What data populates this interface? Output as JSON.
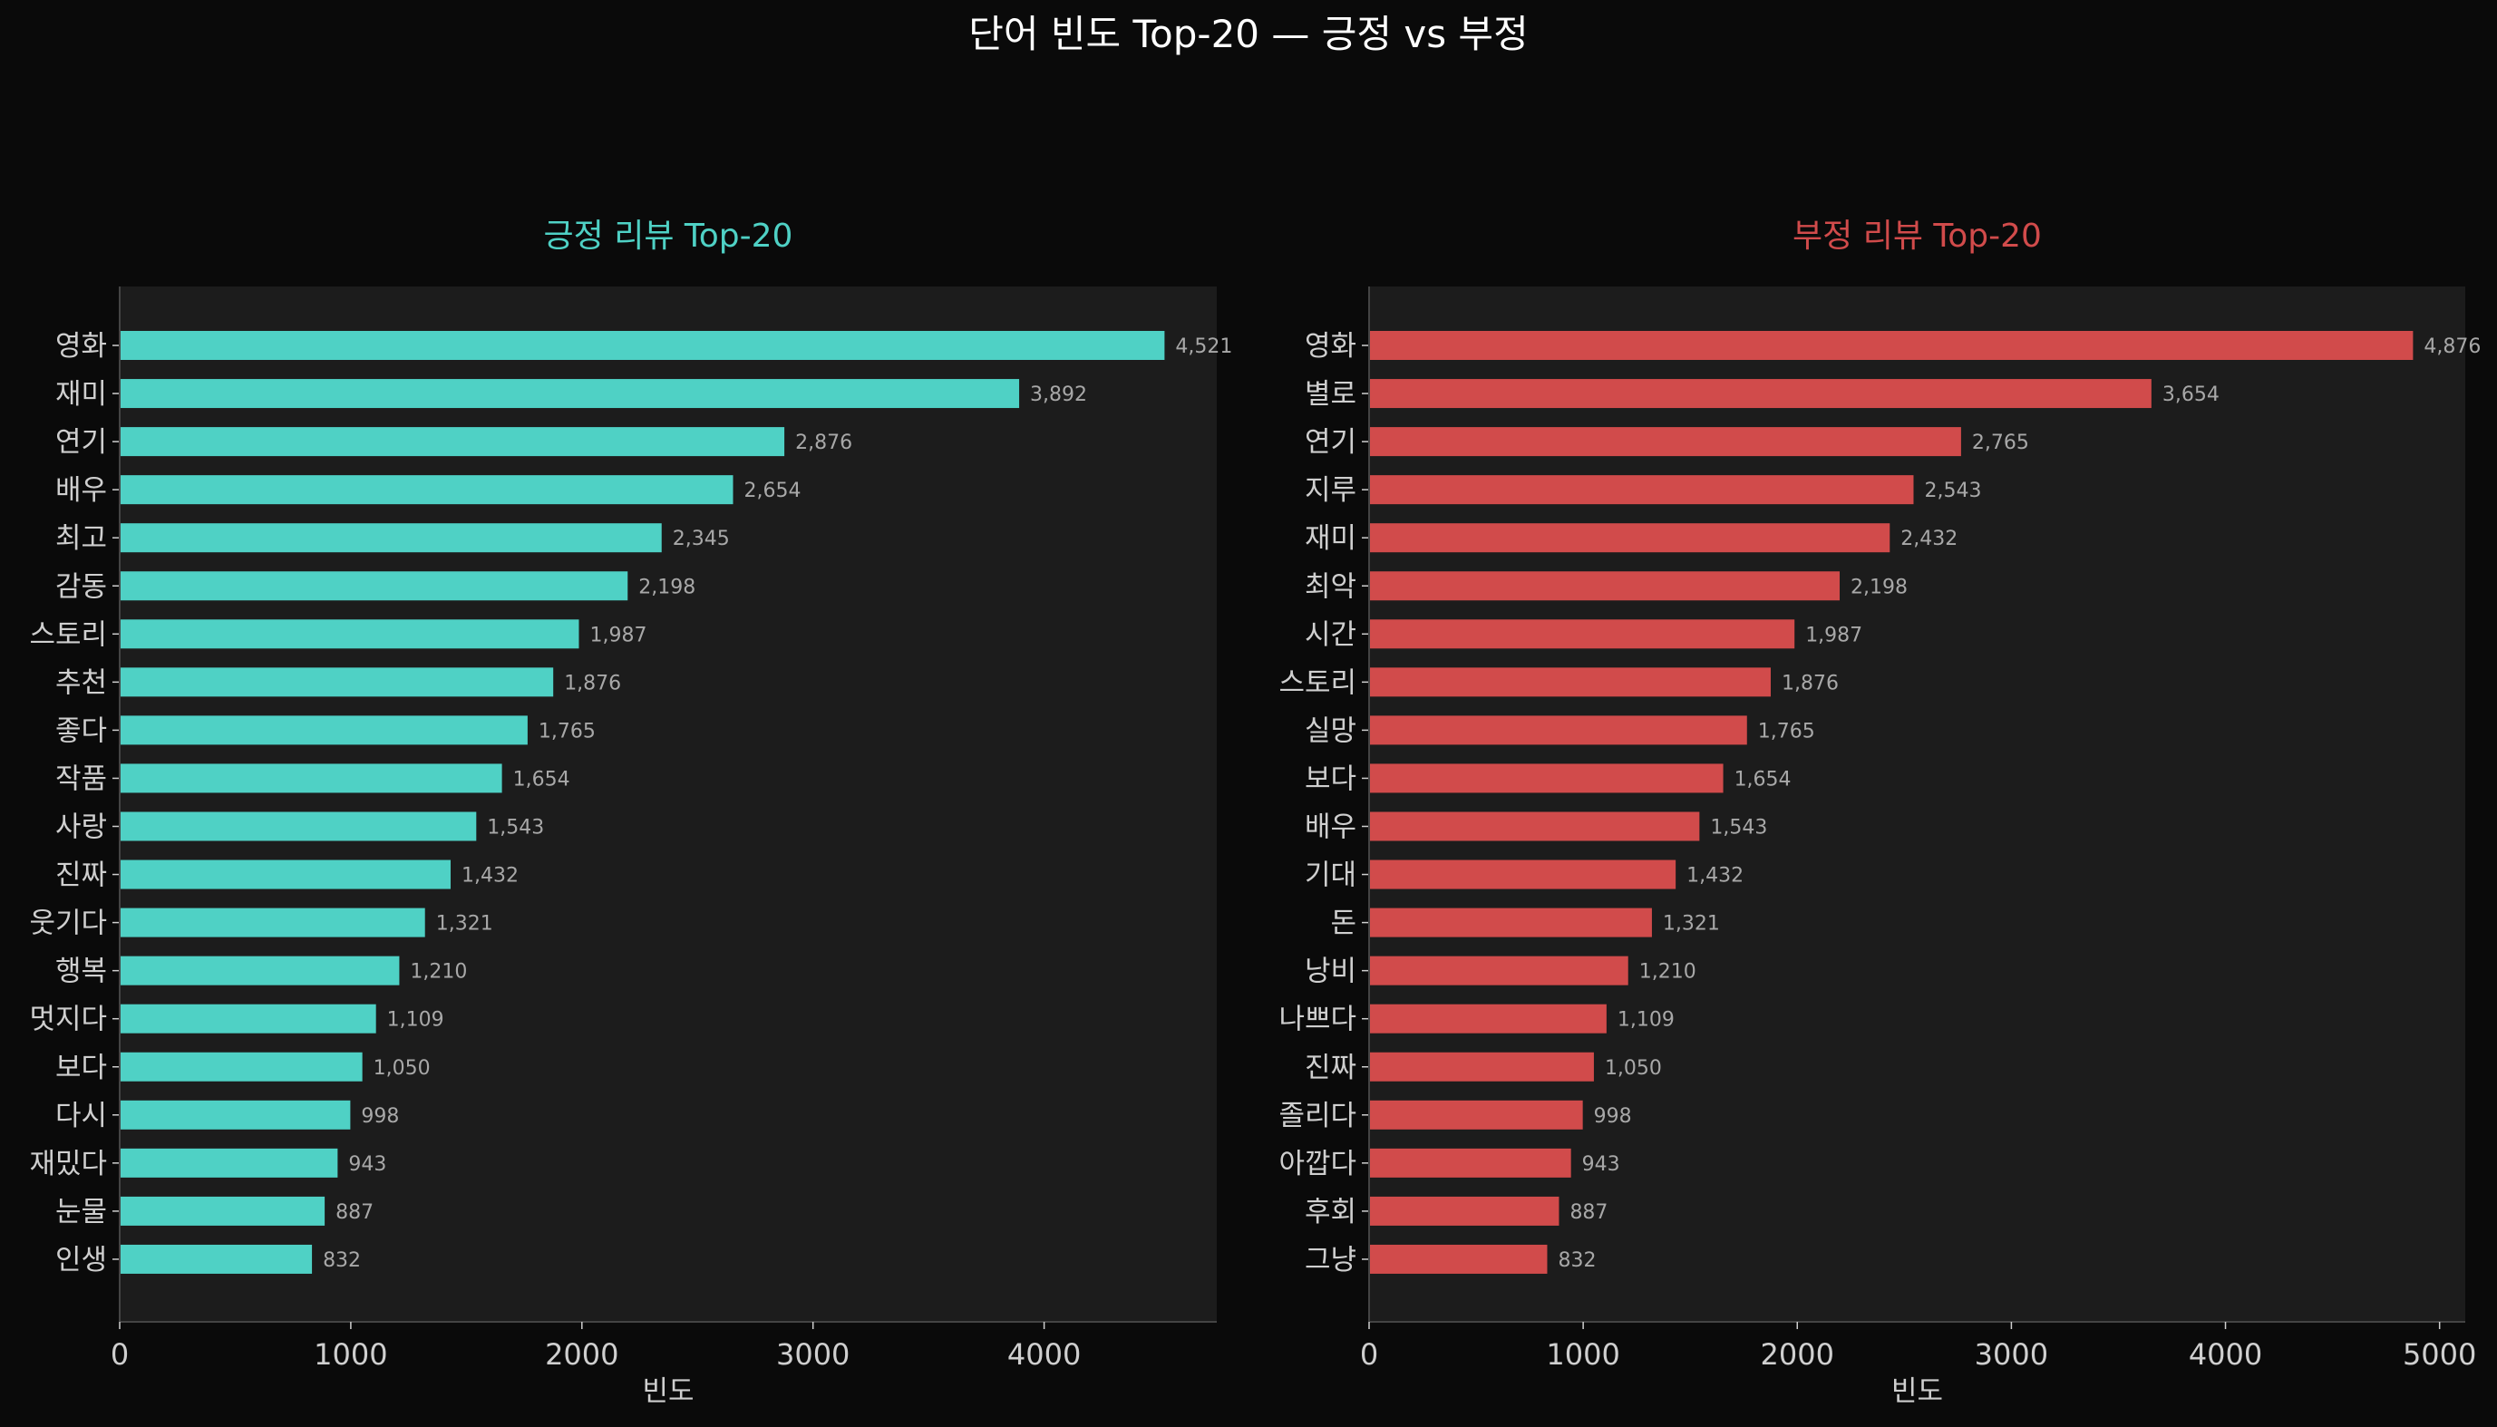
{
  "suptitle": "단어 빈도 Top-20 — 긍정 vs 부정",
  "colors": {
    "background": "#0a0a0a",
    "axes_bg": "#1c1c1c",
    "positive": "#4fd1c5",
    "negative": "#d14b4b",
    "text": "#cfcfcf",
    "value_label": "#a8a8a8"
  },
  "chart_data": [
    {
      "type": "bar",
      "orientation": "horizontal",
      "title": "긍정 리뷰 Top-20",
      "xlabel": "빈도",
      "ylabel": "",
      "color": "#4fd1c5",
      "xlim": [
        0,
        4747
      ],
      "xticks": [
        0,
        1000,
        2000,
        3000,
        4000
      ],
      "grid": false,
      "categories": [
        "영화",
        "재미",
        "연기",
        "배우",
        "최고",
        "감동",
        "스토리",
        "추천",
        "좋다",
        "작품",
        "사랑",
        "진짜",
        "웃기다",
        "행복",
        "멋지다",
        "보다",
        "다시",
        "재밌다",
        "눈물",
        "인생"
      ],
      "values": [
        4521,
        3892,
        2876,
        2654,
        2345,
        2198,
        1987,
        1876,
        1765,
        1654,
        1543,
        1432,
        1321,
        1210,
        1109,
        1050,
        998,
        943,
        887,
        832
      ],
      "value_labels": [
        "4,521",
        "3,892",
        "2,876",
        "2,654",
        "2,345",
        "2,198",
        "1,987",
        "1,876",
        "1,765",
        "1,654",
        "1,543",
        "1,432",
        "1,321",
        "1,210",
        "1,109",
        "1,050",
        "998",
        "943",
        "887",
        "832"
      ]
    },
    {
      "type": "bar",
      "orientation": "horizontal",
      "title": "부정 리뷰 Top-20",
      "xlabel": "빈도",
      "ylabel": "",
      "color": "#d14b4b",
      "xlim": [
        0,
        5120
      ],
      "xticks": [
        0,
        1000,
        2000,
        3000,
        4000,
        5000
      ],
      "grid": false,
      "categories": [
        "영화",
        "별로",
        "연기",
        "지루",
        "재미",
        "최악",
        "시간",
        "스토리",
        "실망",
        "보다",
        "배우",
        "기대",
        "돈",
        "낭비",
        "나쁘다",
        "진짜",
        "졸리다",
        "아깝다",
        "후회",
        "그냥"
      ],
      "values": [
        4876,
        3654,
        2765,
        2543,
        2432,
        2198,
        1987,
        1876,
        1765,
        1654,
        1543,
        1432,
        1321,
        1210,
        1109,
        1050,
        998,
        943,
        887,
        832
      ],
      "value_labels": [
        "4,876",
        "3,654",
        "2,765",
        "2,543",
        "2,432",
        "2,198",
        "1,987",
        "1,876",
        "1,765",
        "1,654",
        "1,543",
        "1,432",
        "1,321",
        "1,210",
        "1,109",
        "1,050",
        "998",
        "943",
        "887",
        "832"
      ]
    }
  ]
}
